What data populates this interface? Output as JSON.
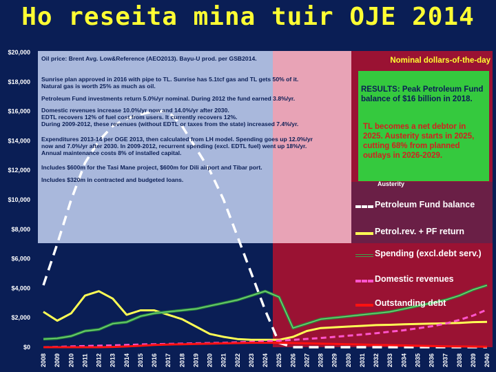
{
  "slide": {
    "title": "Ho reseita mina tuir OJE 2014"
  },
  "colors": {
    "background": "#0a1e55",
    "lightblue_panel": "#a9b8dc",
    "pink_panel": "#e8a3b6",
    "darkred_panel": "#9a1233",
    "maroon_panel": "#6a1f46",
    "green_box": "#35c93e",
    "fund_balance": "#ffffff",
    "petrol_revenue": "#ffff55",
    "spending": "#2f8f3f",
    "domestic": "#ff55cc",
    "debt": "#ff1111"
  },
  "notes": [
    "Oil price: Brent Avg. Low&Reference (AEO2013).   Bayu-U prod. per GSB2014.",
    "Sunrise plan approved in 2016 with pipe to TL. Sunrise has 5.1tcf gas and TL gets 50% of it.",
    "Natural gas is worth 25% as much as oil.",
    "Petroleum Fund investments return 5.0%/yr nominal.   During 2012 the fund earned 3.8%/yr.",
    "Domestic revenues increase 10.0%/yr now and 14.0%/yr after 2030.",
    "EDTL recovers 12% of fuel cost from users. It currently recovers 12%.",
    "During 2009-2012, these revenues (without EDTL or taxes from the state) increased 7.4%/yr.",
    "Expenditures 2013-14 per OGE 2013, then calculated from LH model. Spending goes up 12.0%/yr",
    "now and 7.0%/yr after 2030.  In 2009-2012, recurrent spending (excl. EDTL fuel) went up 18%/yr.",
    "Annual maintenance costs 8% of installed capital.",
    "Includes $600m for the Tasi Mane project, $600m for Dili airport and Tibar port.",
    "Includes $320m in contracted and budgeted loans."
  ],
  "results": {
    "nominal_label": "Nominal dollars-of-the-day",
    "peak_text": "RESULTS: Peak Petroleum Fund balance of $16 billion in 2018.",
    "debtor_text": "TL becomes a net debtor in 2025. Austerity starts in 2025, cutting 68% from planned outlays in 2026-2029.",
    "austerity_stub": "Austerity"
  },
  "chart_data": {
    "type": "line",
    "ylim": [
      0,
      20000
    ],
    "yticks": [
      "$0",
      "$2,000",
      "$4,000",
      "$6,000",
      "$8,000",
      "$10,000",
      "$12,000",
      "$14,000",
      "$16,000",
      "$18,000",
      "$20,000"
    ],
    "x": [
      2008,
      2009,
      2010,
      2011,
      2012,
      2013,
      2014,
      2015,
      2016,
      2017,
      2018,
      2019,
      2020,
      2021,
      2022,
      2023,
      2024,
      2025,
      2026,
      2027,
      2028,
      2029,
      2030,
      2031,
      2032,
      2033,
      2034,
      2035,
      2036,
      2037,
      2038,
      2039,
      2040
    ],
    "series": [
      {
        "name": "Petroleum Fund balance",
        "values": [
          4200,
          7000,
          10000,
          12500,
          14000,
          15000,
          15500,
          15800,
          16000,
          16000,
          15000,
          13500,
          12000,
          10000,
          7500,
          5000,
          2500,
          300,
          0,
          0,
          0,
          0,
          0,
          0,
          0,
          0,
          0,
          0,
          0,
          0,
          0,
          0,
          0
        ]
      },
      {
        "name": "Petrol.rev. + PF return",
        "values": [
          2400,
          1800,
          2300,
          3500,
          3800,
          3300,
          2200,
          2500,
          2500,
          2200,
          1900,
          1400,
          900,
          700,
          550,
          500,
          500,
          500,
          700,
          1100,
          1300,
          1350,
          1400,
          1450,
          1500,
          1520,
          1550,
          1580,
          1600,
          1620,
          1650,
          1700,
          1720
        ]
      },
      {
        "name": "Spending (excl.debt serv.)",
        "values": [
          550,
          600,
          750,
          1100,
          1200,
          1600,
          1700,
          2100,
          2300,
          2400,
          2500,
          2600,
          2800,
          3000,
          3200,
          3500,
          3800,
          3400,
          1300,
          1600,
          1900,
          2000,
          2100,
          2200,
          2300,
          2400,
          2600,
          2800,
          3000,
          3200,
          3500,
          3900,
          4200
        ]
      },
      {
        "name": "Domestic revenues",
        "values": [
          0,
          20,
          50,
          80,
          100,
          120,
          150,
          180,
          200,
          220,
          240,
          260,
          280,
          300,
          330,
          360,
          400,
          450,
          500,
          560,
          620,
          700,
          780,
          860,
          950,
          1050,
          1150,
          1280,
          1420,
          1600,
          1850,
          2150,
          2550
        ]
      },
      {
        "name": "Outstanding debt",
        "values": [
          0,
          0,
          0,
          0,
          0,
          20,
          50,
          100,
          150,
          180,
          200,
          220,
          240,
          260,
          280,
          300,
          300,
          300,
          280,
          260,
          240,
          220,
          200,
          180,
          160,
          140,
          120,
          100,
          80,
          60,
          50,
          40,
          30
        ]
      }
    ]
  }
}
